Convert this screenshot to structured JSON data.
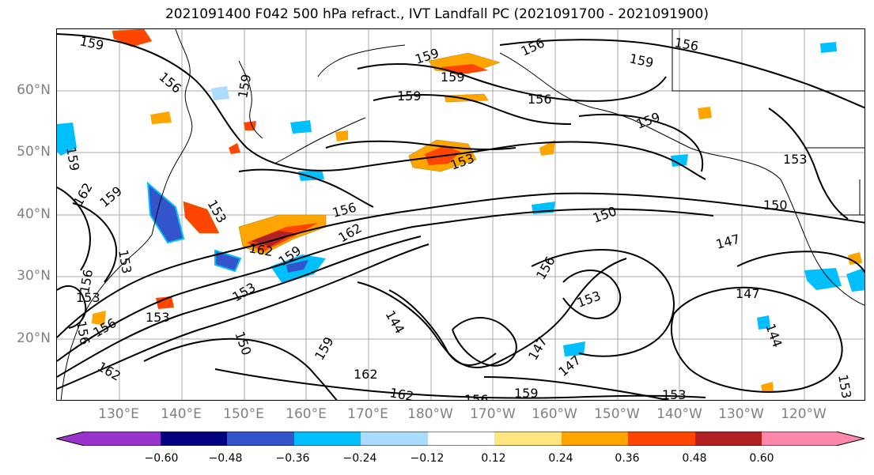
{
  "title": "2021091400 F042 500 hPa refract., IVT Landfall PC (2021091700 - 2021091900)",
  "latitude_labels": [
    "60°N",
    "50°N",
    "40°N",
    "30°N",
    "20°N"
  ],
  "longitude_labels": [
    "130°E",
    "140°E",
    "150°E",
    "160°E",
    "170°E",
    "180°W",
    "170°W",
    "160°W",
    "150°W",
    "140°W",
    "130°W",
    "120°W"
  ],
  "colorbar": {
    "ticks": [
      "−0.60",
      "−0.48",
      "−0.36",
      "−0.24",
      "−0.12",
      "0.12",
      "0.24",
      "0.36",
      "0.48",
      "0.60"
    ],
    "colors": [
      "#9933cc",
      "#000080",
      "#3355cc",
      "#00bfff",
      "#aadcff",
      "#ffffff",
      "#ffe680",
      "#ffa500",
      "#ff4500",
      "#b22222",
      "#ff88aa"
    ],
    "extend": "both"
  },
  "contour_labels": [
    "159",
    "156",
    "159",
    "156",
    "159",
    "156",
    "159",
    "159",
    "159",
    "156",
    "159",
    "159",
    "153",
    "153",
    "156",
    "150",
    "150",
    "147",
    "147",
    "144",
    "156",
    "153",
    "162",
    "159",
    "153",
    "153",
    "153",
    "156",
    "150",
    "147",
    "144",
    "147",
    "159",
    "162",
    "162",
    "156",
    "159",
    "153",
    "153",
    "156",
    "153",
    "156",
    "153",
    "162",
    "159",
    "162",
    "162"
  ],
  "colors": {
    "contour": "#000000",
    "grid": "#aaaaaa",
    "coastline": "#000000",
    "frame": "#000000",
    "axis_label": "#808080"
  }
}
